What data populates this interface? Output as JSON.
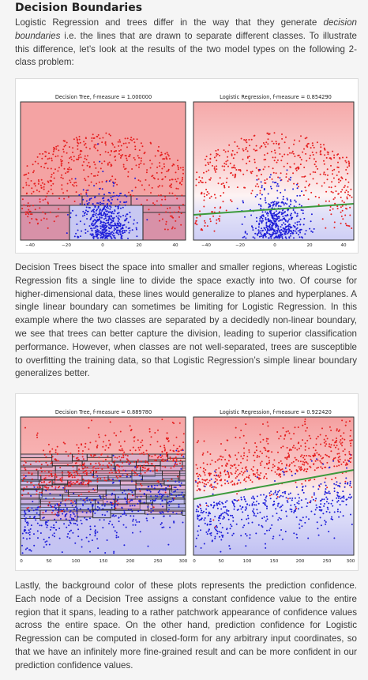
{
  "heading": "Decision Boundaries",
  "paragraph1": {
    "pre": "Logistic Regression and trees differ in the way that they generate ",
    "em": "decision boundaries",
    "post": " i.e. the lines that are drawn to separate different classes. To illustrate this difference, let’s look at the results of the two model types on the following 2-class problem:"
  },
  "paragraph2": "Decision Trees bisect the space into smaller and smaller regions, whereas Logistic Regression fits a single line to divide the space exactly into two. Of course for higher-dimensional data, these lines would generalize to planes and hyperplanes. A single linear boundary can sometimes be limiting for Logistic Regression. In this example where the two classes are separated by a decidedly non-linear boundary, we see that trees can better capture the division, leading to superior classification performance. However, when classes are not well-separated, trees are susceptible to overfitting the training data, so that Logistic Regression’s simple linear boundary generalizes better.",
  "paragraph3": "Lastly, the background color of these plots represents the prediction confidence. Each node of a Decision Tree assigns a constant confidence value to the entire region that it spans, leading to a rather patchwork appearance of confidence values across the entire space. On the other hand, prediction confidence for Logistic Regression can be computed in closed-form for any arbitrary input coordinates, so that we have an infinitely more fine-grained result and can be more confident in our prediction confidence values.",
  "colors": {
    "class_red": "#e52020",
    "class_blue": "#1d1dd8",
    "boundary_green": "#3c9a3c",
    "region_red": "#f4a3a3",
    "region_blue": "#c7c7f3"
  },
  "figure1": {
    "left": {
      "title": "Decision Tree, f-measure = 1.000000",
      "xticks": [
        "−40",
        "−20",
        "0",
        "20",
        "40"
      ]
    },
    "right": {
      "title": "Logistic Regression, f-measure = 0.854290",
      "xticks": [
        "−40",
        "−20",
        "0",
        "20",
        "40"
      ]
    }
  },
  "figure2": {
    "left": {
      "title": "Decision Tree, f-measure = 0.889780",
      "xticks": [
        "0",
        "50",
        "100",
        "150",
        "200",
        "250",
        "300"
      ]
    },
    "right": {
      "title": "Logistic Regression, f-measure = 0.922420",
      "xticks": [
        "0",
        "50",
        "100",
        "150",
        "200",
        "250",
        "300"
      ]
    }
  }
}
